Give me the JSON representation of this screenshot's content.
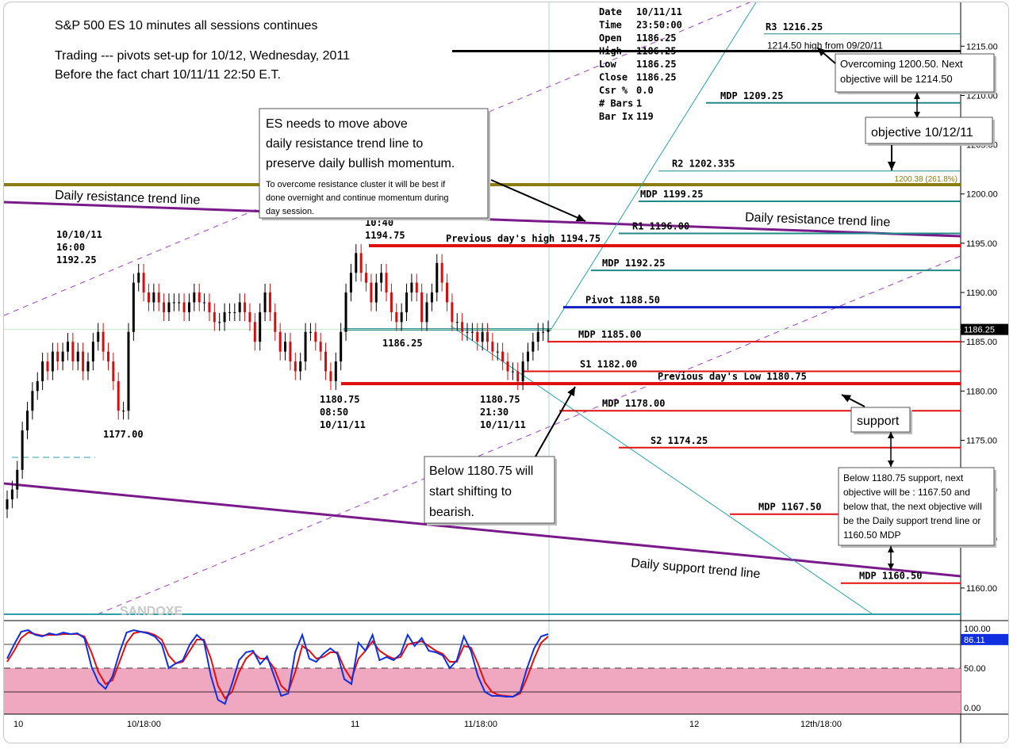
{
  "chart_data": {
    "type": "candlestick",
    "title": "S&P 500 ES 10 minutes all sessions continues",
    "subtitle_1": "Trading --- pivots set-up for 10/12, Wednesday, 2011",
    "subtitle_2": "Before the fact chart  10/11/11 22:50 E.T.",
    "ylim": [
      1157.5,
      1218
    ],
    "y_ticks": [
      "1215.00",
      "1210.00",
      "1205.00",
      "1200.00",
      "1195.00",
      "1190.00",
      "1185.00",
      "1180.00",
      "1175.00",
      "1170.00",
      "1165.00",
      "1160.00"
    ],
    "y_tick_values": [
      1215,
      1210,
      1205,
      1200,
      1195,
      1190,
      1185,
      1180,
      1175,
      1170,
      1165,
      1160
    ],
    "x_ticks": [
      "10",
      "10/18:00",
      "11",
      "11/18:00",
      "12",
      "12th/18:00"
    ],
    "last_price": "1186.25",
    "info_box": [
      {
        "k": "Date",
        "v": "10/11/11"
      },
      {
        "k": "Time",
        "v": "23:50:00"
      },
      {
        "k": "Open",
        "v": "1186.25"
      },
      {
        "k": "High",
        "v": "1186.25"
      },
      {
        "k": "Low",
        "v": "1186.25"
      },
      {
        "k": "Close",
        "v": "1186.25"
      },
      {
        "k": "Csr %",
        "v": "0.0"
      },
      {
        "k": "# Bars",
        "v": "1"
      },
      {
        "k": "Bar Ix",
        "v": "119"
      }
    ],
    "levels": [
      {
        "label": "R3 1216.25",
        "value": 1216.25,
        "color": "#1f8a86"
      },
      {
        "label": "1214.50 high from  09/20/11",
        "value": 1214.5,
        "color": "#000000"
      },
      {
        "label": "MDP 1209.25",
        "value": 1209.25,
        "color": "#1f8a86"
      },
      {
        "label": "R2 1202.335",
        "value": 1202.335,
        "color": "#1f8a86"
      },
      {
        "label": "MDP 1199.25",
        "value": 1199.25,
        "color": "#1f8a86"
      },
      {
        "label": "R1 1196.00",
        "value": 1196.0,
        "color": "#1f8a86"
      },
      {
        "label": "Previous day's high 1194.75",
        "value": 1194.75,
        "color": "#e01010"
      },
      {
        "label": "MDP 1192.25",
        "value": 1192.25,
        "color": "#1f8a86"
      },
      {
        "label": "Pivot 1188.50",
        "value": 1188.5,
        "color": "#1020c0"
      },
      {
        "label": "MDP 1185.00",
        "value": 1185.0,
        "color": "#e01010"
      },
      {
        "label": "S1 1182.00",
        "value": 1182.0,
        "color": "#e01010"
      },
      {
        "label": "Previous day's  Low 1180.75",
        "value": 1180.75,
        "color": "#e01010"
      },
      {
        "label": "MDP 1178.00",
        "value": 1178.0,
        "color": "#e01010"
      },
      {
        "label": "S2 1174.25",
        "value": 1174.25,
        "color": "#e01010"
      },
      {
        "label": "MDP 1167.50",
        "value": 1167.5,
        "color": "#e01010"
      },
      {
        "label": "MDP 1160.50",
        "value": 1160.5,
        "color": "#e01010"
      }
    ],
    "fib_label": "1200.38 (261.8%)",
    "fib_value": 1200.38,
    "price_labels": [
      {
        "lines": [
          "10/10/11",
          "16:00",
          "1192.25"
        ]
      },
      {
        "lines": [
          "1177.00"
        ]
      },
      {
        "lines": [
          "10:40",
          "1194.75"
        ]
      },
      {
        "lines": [
          "1186.25"
        ]
      },
      {
        "lines": [
          "1180.75",
          "08:50",
          "10/11/11"
        ]
      },
      {
        "lines": [
          "1180.75",
          "21:30",
          "10/11/11"
        ]
      }
    ],
    "trend_labels": {
      "left_resistance": "Daily resistance trend line",
      "right_resistance": "Daily resistance trend line",
      "support": "Daily support trend line"
    },
    "watermark": "SANDOXE",
    "series_closes": [
      1169,
      1170,
      1172,
      1176,
      1178,
      1180,
      1181,
      1183,
      1182,
      1184,
      1183,
      1184,
      1185,
      1183,
      1184,
      1182,
      1183,
      1185,
      1186,
      1184,
      1183,
      1181,
      1178,
      1178,
      1186,
      1191,
      1192,
      1190,
      1189,
      1190,
      1189,
      1188,
      1189,
      1189,
      1189,
      1188,
      1189,
      1190,
      1189,
      1189,
      1188,
      1187,
      1187,
      1188,
      1188,
      1188,
      1189,
      1188,
      1187,
      1185,
      1188,
      1190,
      1188,
      1186,
      1184,
      1185,
      1183,
      1182,
      1183,
      1186,
      1186,
      1185,
      1184,
      1182,
      1181,
      1183,
      1186,
      1190,
      1192,
      1194,
      1192,
      1191,
      1189,
      1191,
      1192,
      1190,
      1188,
      1187,
      1188,
      1190,
      1191,
      1190,
      1187,
      1189,
      1190,
      1193,
      1191,
      1189,
      1187,
      1187,
      1186,
      1186,
      1186,
      1185,
      1186,
      1185,
      1184,
      1184,
      1183,
      1182,
      1182,
      1181,
      1183,
      1184,
      1185,
      1186,
      1186,
      1186.25
    ],
    "stochastic": {
      "y_ticks": [
        "100.00",
        "50.00",
        "0.00"
      ],
      "last_value": "86.11",
      "k": [
        62,
        80,
        96,
        98,
        92,
        90,
        94,
        92,
        95,
        93,
        94,
        88,
        52,
        32,
        24,
        40,
        70,
        95,
        98,
        96,
        94,
        90,
        80,
        50,
        56,
        60,
        80,
        92,
        84,
        40,
        10,
        5,
        30,
        60,
        70,
        72,
        55,
        65,
        40,
        15,
        18,
        70,
        92,
        62,
        58,
        68,
        75,
        68,
        36,
        30,
        82,
        72,
        92,
        60,
        64,
        60,
        68,
        92,
        78,
        88,
        72,
        70,
        66,
        50,
        60,
        90,
        72,
        40,
        20,
        15,
        15,
        14,
        14,
        20,
        50,
        75,
        90,
        93
      ],
      "d": [
        58,
        72,
        88,
        95,
        93,
        91,
        92,
        92,
        93,
        93,
        93,
        90,
        70,
        45,
        30,
        35,
        58,
        82,
        94,
        96,
        95,
        92,
        86,
        66,
        56,
        58,
        72,
        86,
        86,
        62,
        28,
        12,
        20,
        45,
        62,
        70,
        62,
        62,
        50,
        28,
        20,
        45,
        78,
        72,
        62,
        64,
        70,
        70,
        50,
        36,
        62,
        72,
        84,
        72,
        66,
        62,
        64,
        80,
        82,
        84,
        78,
        72,
        68,
        58,
        58,
        78,
        76,
        56,
        32,
        20,
        16,
        15,
        14,
        18,
        38,
        62,
        82,
        90
      ]
    },
    "callouts": {
      "c1_big": [
        "ES needs to move above",
        "daily resistance trend line to",
        "preserve daily bullish momentum."
      ],
      "c1_small": [
        "To overcome resistance cluster it will be best if",
        "done overnight and continue momentum during",
        "day session."
      ],
      "c2": [
        "Overcoming 1200.50. Next",
        "objective  will be 1214.50"
      ],
      "c3": "objective 10/12/11",
      "c4": "support",
      "c5": [
        "Below 1180.75 will",
        "start shifting to",
        "bearish."
      ],
      "c6": [
        "Below 1180.75 support, next",
        "objective will be :  1167.50 and",
        "below that, the next objective will",
        "be the Daily support trend line or",
        "1160.50 MDP"
      ]
    }
  }
}
